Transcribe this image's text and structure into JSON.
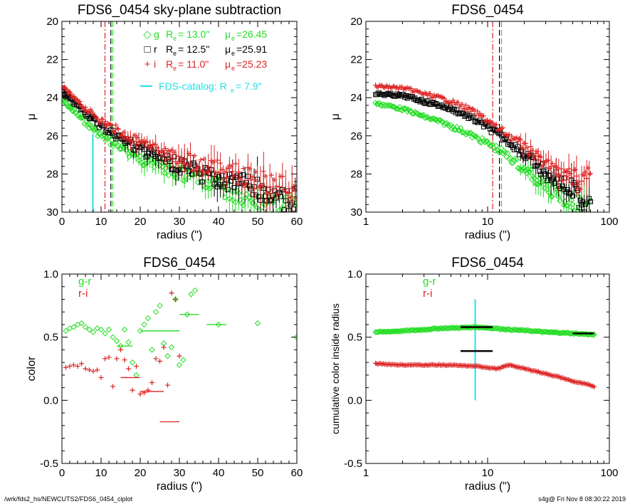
{
  "colors": {
    "g": "#22dd22",
    "r": "#000000",
    "i": "#dd2222",
    "cyan": "#22e0e8",
    "axis": "#000000"
  },
  "footer": {
    "left": "/wrk/fds2_hs/NEWCUTS2/FDS6_0454_ciplot",
    "right": "s4g@  Fri Nov  8 08:30:22 2019"
  },
  "chart_data": [
    {
      "type": "scatter",
      "title": "FDS6_0454 sky-plane subtraction",
      "xlabel": "radius (\")",
      "ylabel": "μ",
      "xlim": [
        0,
        60
      ],
      "ylim": [
        30,
        20
      ],
      "xticks": [
        "0",
        "10",
        "20",
        "30",
        "40",
        "50",
        "60"
      ],
      "yticks": [
        "20",
        "22",
        "24",
        "26",
        "28",
        "30"
      ],
      "vlines": [
        {
          "x": 13.0,
          "color": "g",
          "style": "dash"
        },
        {
          "x": 12.5,
          "color": "r",
          "style": "dash"
        },
        {
          "x": 11.0,
          "color": "i",
          "style": "dashdot"
        }
      ],
      "catalog_line": {
        "x": 7.9,
        "y_from": 25.9,
        "y_to": 30
      },
      "legend": [
        {
          "band": "g",
          "symbol": "◇",
          "re_text": "R",
          "re_sub": "e",
          "re_val": "=  13.0\"",
          "mu_text": "μ",
          "mu_sub": "e",
          "mu_val": "=26.45"
        },
        {
          "band": "r",
          "symbol": "□",
          "re_text": "R",
          "re_sub": "e",
          "re_val": "=  12.5\"",
          "mu_text": "μ",
          "mu_sub": "e",
          "mu_val": "=25.91"
        },
        {
          "band": "i",
          "symbol": "+",
          "re_text": "R",
          "re_sub": "e",
          "re_val": "=  11.0\"",
          "mu_text": "μ",
          "mu_sub": "e",
          "mu_val": "=25.23"
        }
      ],
      "catalog_label": "FDS-catalog: R",
      "catalog_sub": "e",
      "catalog_val": "=   7.9\"",
      "series": [
        {
          "band": "g",
          "profile": [
            [
              0,
              24.1
            ],
            [
              5,
              25.1
            ],
            [
              10,
              26.0
            ],
            [
              15,
              26.6
            ],
            [
              20,
              27.2
            ],
            [
              30,
              28.0
            ],
            [
              40,
              28.7
            ],
            [
              50,
              29.3
            ],
            [
              60,
              29.8
            ]
          ]
        },
        {
          "band": "r",
          "profile": [
            [
              0,
              23.7
            ],
            [
              5,
              24.6
            ],
            [
              10,
              25.5
            ],
            [
              15,
              26.1
            ],
            [
              20,
              26.7
            ],
            [
              30,
              27.6
            ],
            [
              40,
              28.3
            ],
            [
              50,
              28.8
            ],
            [
              60,
              29.4
            ]
          ]
        },
        {
          "band": "i",
          "profile": [
            [
              0,
              23.4
            ],
            [
              5,
              24.4
            ],
            [
              10,
              25.2
            ],
            [
              15,
              25.8
            ],
            [
              20,
              26.4
            ],
            [
              30,
              27.2
            ],
            [
              40,
              27.8
            ],
            [
              50,
              28.3
            ],
            [
              60,
              28.8
            ]
          ]
        }
      ]
    },
    {
      "type": "scatter",
      "title": "FDS6_0454",
      "xlabel": "radius (\")",
      "ylabel": "μ",
      "xscale": "log",
      "xlim": [
        1,
        100
      ],
      "ylim": [
        30,
        20
      ],
      "xticks": [
        "1",
        "10",
        "100"
      ],
      "yticks": [
        "20",
        "22",
        "24",
        "26",
        "28",
        "30"
      ],
      "vlines": [
        {
          "x": 13.0,
          "color": "g",
          "style": "dash"
        },
        {
          "x": 12.5,
          "color": "r",
          "style": "dash"
        },
        {
          "x": 11.0,
          "color": "i",
          "style": "dashdot"
        }
      ],
      "series": [
        {
          "band": "g",
          "profile": [
            [
              1.2,
              24.3
            ],
            [
              2,
              24.6
            ],
            [
              3,
              25.0
            ],
            [
              5,
              25.5
            ],
            [
              8,
              26.1
            ],
            [
              12,
              26.7
            ],
            [
              20,
              27.8
            ],
            [
              30,
              28.7
            ],
            [
              50,
              29.5
            ],
            [
              70,
              30
            ]
          ]
        },
        {
          "band": "r",
          "profile": [
            [
              1.2,
              23.8
            ],
            [
              2,
              23.9
            ],
            [
              3,
              24.2
            ],
            [
              5,
              24.6
            ],
            [
              8,
              25.2
            ],
            [
              12,
              25.9
            ],
            [
              20,
              27.0
            ],
            [
              30,
              28.0
            ],
            [
              50,
              28.9
            ],
            [
              70,
              29.8
            ]
          ]
        },
        {
          "band": "i",
          "profile": [
            [
              1.2,
              23.4
            ],
            [
              2,
              23.5
            ],
            [
              3,
              23.8
            ],
            [
              5,
              24.2
            ],
            [
              8,
              24.8
            ],
            [
              12,
              25.6
            ],
            [
              20,
              26.6
            ],
            [
              30,
              27.5
            ],
            [
              50,
              28.2
            ],
            [
              70,
              28.2
            ]
          ]
        }
      ]
    },
    {
      "type": "scatter",
      "title": "FDS6_0454",
      "xlabel": "radius (\")",
      "ylabel": "color",
      "xlim": [
        0,
        60
      ],
      "ylim": [
        -0.5,
        1.0
      ],
      "xticks": [
        "0",
        "10",
        "20",
        "30",
        "40",
        "50",
        "60"
      ],
      "yticks": [
        "-0.5",
        "0.0",
        "0.5",
        "1.0"
      ],
      "legend": [
        {
          "band": "g",
          "label": "g-r"
        },
        {
          "band": "i",
          "label": "r-i"
        }
      ],
      "series": [
        {
          "band": "g",
          "name": "g-r",
          "points": [
            [
              1,
              0.55
            ],
            [
              2,
              0.57
            ],
            [
              3,
              0.58
            ],
            [
              4,
              0.6
            ],
            [
              5,
              0.61
            ],
            [
              6,
              0.58
            ],
            [
              7,
              0.56
            ],
            [
              8,
              0.54
            ],
            [
              9,
              0.57
            ],
            [
              10,
              0.56
            ],
            [
              11,
              0.53
            ],
            [
              12,
              0.56
            ],
            [
              13,
              0.5
            ],
            [
              14,
              0.47
            ],
            [
              15,
              0.43
            ],
            [
              16,
              0.56
            ],
            [
              17,
              0.46
            ],
            [
              18,
              0.3
            ],
            [
              19,
              0.2
            ],
            [
              20,
              0.55
            ],
            [
              21,
              0.6
            ],
            [
              22,
              0.65
            ],
            [
              23,
              0.4
            ],
            [
              24,
              0.7
            ],
            [
              25,
              0.75
            ],
            [
              26,
              0.45
            ],
            [
              27,
              0.35
            ],
            [
              28,
              0.42
            ],
            [
              29,
              0.8
            ],
            [
              30,
              0.28
            ],
            [
              31,
              0.32
            ],
            [
              32,
              0.68
            ],
            [
              33,
              0.84
            ],
            [
              34,
              0.87
            ],
            [
              40,
              0.6
            ],
            [
              50,
              0.61
            ]
          ],
          "hbars": [
            [
              14,
              18,
              0.43
            ],
            [
              20,
              30,
              0.55
            ],
            [
              30,
              35,
              0.68
            ],
            [
              37,
              42,
              0.6
            ]
          ]
        },
        {
          "band": "i",
          "name": "r-i",
          "points": [
            [
              1,
              0.26
            ],
            [
              2,
              0.27
            ],
            [
              3,
              0.28
            ],
            [
              4,
              0.27
            ],
            [
              5,
              0.29
            ],
            [
              6,
              0.25
            ],
            [
              7,
              0.24
            ],
            [
              8,
              0.23
            ],
            [
              9,
              0.24
            ],
            [
              10,
              0.18
            ],
            [
              11,
              0.33
            ],
            [
              12,
              0.34
            ],
            [
              13,
              0.11
            ],
            [
              14,
              0.33
            ],
            [
              15,
              0.4
            ],
            [
              16,
              0.32
            ],
            [
              17,
              0.25
            ],
            [
              18,
              0.08
            ],
            [
              19,
              0.27
            ],
            [
              20,
              0.05
            ],
            [
              21,
              0.06
            ],
            [
              22,
              0.08
            ],
            [
              23,
              0.14
            ],
            [
              24,
              0.33
            ],
            [
              25,
              0.31
            ],
            [
              26,
              0.42
            ],
            [
              27,
              0.12
            ],
            [
              28,
              0.85
            ],
            [
              29,
              0.8
            ],
            [
              30,
              0.35
            ]
          ],
          "hbars": [
            [
              15,
              20,
              0.18
            ],
            [
              20,
              26,
              0.07
            ],
            [
              25,
              30,
              -0.17
            ]
          ]
        }
      ]
    },
    {
      "type": "scatter",
      "title": "FDS6_0454",
      "xlabel": "radius (\")",
      "ylabel": "cumulative color inside radius",
      "xscale": "log",
      "xlim": [
        1,
        100
      ],
      "ylim": [
        -0.5,
        1.0
      ],
      "xticks": [
        "1",
        "10",
        "100"
      ],
      "yticks": [
        "-0.5",
        "0.0",
        "0.5",
        "1.0"
      ],
      "legend": [
        {
          "band": "g",
          "label": "g-r"
        },
        {
          "band": "i",
          "label": "r-i"
        }
      ],
      "catalog_line": {
        "x": 7.9,
        "y_from": 0.0,
        "y_to": 0.8
      },
      "series": [
        {
          "band": "g",
          "name": "g-r",
          "profile": [
            [
              1.2,
              0.54
            ],
            [
              2,
              0.55
            ],
            [
              4,
              0.57
            ],
            [
              8,
              0.58
            ],
            [
              15,
              0.56
            ],
            [
              30,
              0.54
            ],
            [
              50,
              0.53
            ],
            [
              75,
              0.52
            ]
          ]
        },
        {
          "band": "i",
          "name": "r-i",
          "profile": [
            [
              1.2,
              0.29
            ],
            [
              2,
              0.28
            ],
            [
              4,
              0.28
            ],
            [
              8,
              0.27
            ],
            [
              12,
              0.25
            ],
            [
              15,
              0.28
            ],
            [
              20,
              0.25
            ],
            [
              30,
              0.21
            ],
            [
              50,
              0.15
            ],
            [
              75,
              0.11
            ]
          ]
        }
      ],
      "hbars": [
        {
          "x0": 6,
          "x1": 11,
          "y": 0.58,
          "color": "r"
        },
        {
          "x0": 6,
          "x1": 11,
          "y": 0.39,
          "color": "r"
        },
        {
          "x0": 50,
          "x1": 75,
          "y": 0.53,
          "color": "r"
        }
      ]
    }
  ]
}
